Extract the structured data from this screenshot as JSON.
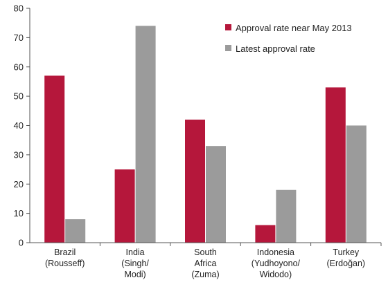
{
  "chart_data": {
    "type": "bar",
    "categories": [
      [
        "Brazil",
        "(Rousseff)"
      ],
      [
        "India",
        "(Singh/",
        "Modi)"
      ],
      [
        "South",
        "Africa",
        "(Zuma)"
      ],
      [
        "Indonesia",
        "(Yudhoyono/",
        "Widodo)"
      ],
      [
        "Turkey",
        "(Erdoğan)"
      ]
    ],
    "series": [
      {
        "name": "Approval rate near May 2013",
        "color": "#b5173b",
        "values": [
          57,
          25,
          42,
          6,
          53
        ]
      },
      {
        "name": "Latest approval rate",
        "color": "#9b9b9b",
        "values": [
          8,
          74,
          33,
          18,
          40
        ]
      }
    ],
    "ylim": [
      0,
      80
    ],
    "yticks": [
      0,
      10,
      20,
      30,
      40,
      50,
      60,
      70,
      80
    ],
    "title": "",
    "xlabel": "",
    "ylabel": "",
    "grid": false,
    "legend_position": "top-right"
  }
}
